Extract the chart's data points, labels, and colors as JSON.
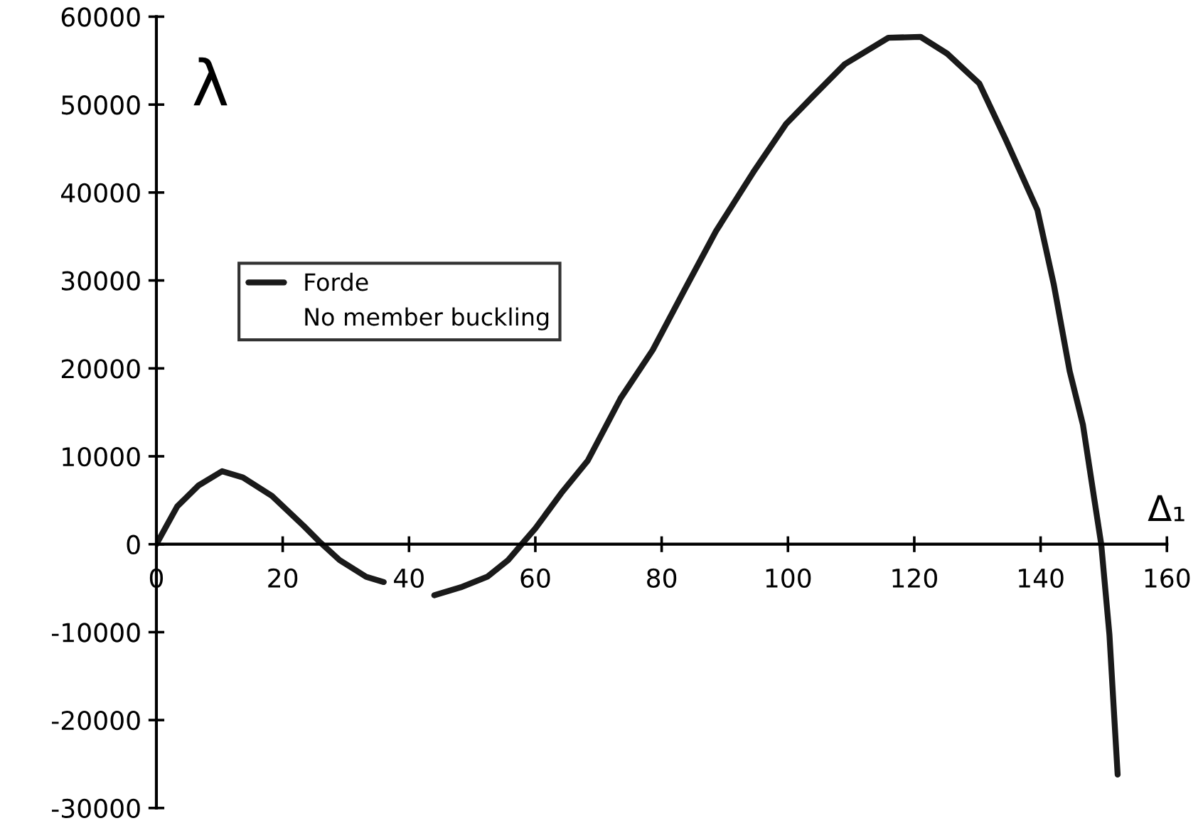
{
  "chart_data": {
    "type": "line",
    "xlabel": "Δ₁",
    "ylabel": "λ",
    "xlim": [
      0,
      160
    ],
    "ylim": [
      -30000,
      60000
    ],
    "xticks": [
      0,
      20,
      40,
      60,
      80,
      100,
      120,
      140,
      160
    ],
    "yticks": [
      -30000,
      -20000,
      -10000,
      0,
      10000,
      20000,
      30000,
      40000,
      50000,
      60000
    ],
    "grid": false,
    "legend": "left",
    "annotations": [
      "No member buckling"
    ],
    "series": [
      {
        "name": "Forde",
        "color": "#1a1a1a",
        "x": [
          0,
          3.3,
          6.7,
          10.4,
          13.7,
          18.3,
          23.3,
          25.8,
          29,
          33.2,
          36,
          40,
          44,
          48.2,
          52.4,
          55.7,
          58.2,
          60,
          64.1,
          68.3,
          71.6,
          73.5,
          78.6,
          83.6,
          88.6,
          94.5,
          99.7,
          103.9,
          109,
          115.9,
          121,
          125.2,
          130.3,
          134.5,
          139.5,
          142.1,
          144.6,
          146.7,
          148.4,
          149.6,
          150.9,
          151.7,
          152.2
        ],
        "values": [
          0,
          4300,
          6700,
          8300,
          7600,
          5500,
          2100,
          300,
          -1800,
          -3700,
          -4300,
          null,
          -5800,
          -4900,
          -3700,
          -1800,
          300,
          1800,
          5800,
          9500,
          14000,
          16600,
          22100,
          28900,
          35600,
          42300,
          47800,
          50900,
          54600,
          57600,
          57700,
          55800,
          52400,
          46000,
          38000,
          29500,
          19700,
          13600,
          5600,
          0,
          -10300,
          -20100,
          -26200
        ]
      }
    ]
  }
}
